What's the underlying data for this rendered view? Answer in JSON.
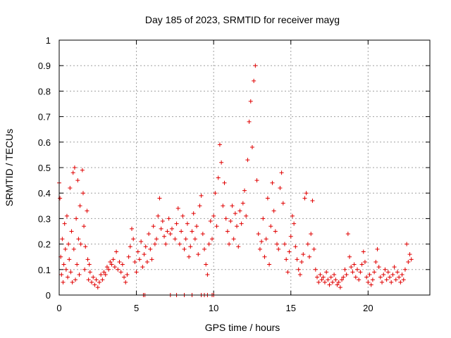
{
  "chart_data": {
    "type": "scatter",
    "title": "Day 185 of 2023, SRMTID for receiver mayg",
    "xlabel": "GPS time / hours",
    "ylabel": "SRMTID / TECUs",
    "xlim": [
      0,
      24
    ],
    "ylim": [
      0,
      1
    ],
    "x_ticks": [
      0,
      5,
      10,
      15,
      20
    ],
    "x_tick_labels": [
      "0",
      "5",
      "10",
      "15",
      "20"
    ],
    "y_ticks": [
      0,
      0.1,
      0.2,
      0.3,
      0.4,
      0.5,
      0.6,
      0.7,
      0.8,
      0.9,
      1
    ],
    "y_tick_labels": [
      "0",
      "0.1",
      "0.2",
      "0.3",
      "0.4",
      "0.5",
      "0.6",
      "0.7",
      "0.8",
      "0.9",
      "1"
    ],
    "grid": true,
    "marker": "+",
    "color": "#e00000",
    "series": [
      {
        "name": "SRMTID",
        "points": [
          [
            0.0,
            0.44
          ],
          [
            0.05,
            0.38
          ],
          [
            0.1,
            0.15
          ],
          [
            0.15,
            0.08
          ],
          [
            0.2,
            0.22
          ],
          [
            0.25,
            0.05
          ],
          [
            0.3,
            0.12
          ],
          [
            0.35,
            0.28
          ],
          [
            0.4,
            0.18
          ],
          [
            0.45,
            0.1
          ],
          [
            0.5,
            0.31
          ],
          [
            0.55,
            0.07
          ],
          [
            0.6,
            0.2
          ],
          [
            0.65,
            0.14
          ],
          [
            0.7,
            0.42
          ],
          [
            0.75,
            0.09
          ],
          [
            0.8,
            0.25
          ],
          [
            0.85,
            0.05
          ],
          [
            0.9,
            0.48
          ],
          [
            0.95,
            0.18
          ],
          [
            1.0,
            0.5
          ],
          [
            1.05,
            0.06
          ],
          [
            1.1,
            0.3
          ],
          [
            1.15,
            0.12
          ],
          [
            1.2,
            0.45
          ],
          [
            1.25,
            0.22
          ],
          [
            1.3,
            0.08
          ],
          [
            1.35,
            0.35
          ],
          [
            1.4,
            0.2
          ],
          [
            1.5,
            0.49
          ],
          [
            1.55,
            0.4
          ],
          [
            1.6,
            0.27
          ],
          [
            1.65,
            0.1
          ],
          [
            1.7,
            0.19
          ],
          [
            1.8,
            0.33
          ],
          [
            1.85,
            0.14
          ],
          [
            1.9,
            0.06
          ],
          [
            1.95,
            0.12
          ],
          [
            2.0,
            0.09
          ],
          [
            2.1,
            0.05
          ],
          [
            2.2,
            0.07
          ],
          [
            2.3,
            0.04
          ],
          [
            2.4,
            0.06
          ],
          [
            2.5,
            0.03
          ],
          [
            2.6,
            0.05
          ],
          [
            2.7,
            0.08
          ],
          [
            2.8,
            0.06
          ],
          [
            2.9,
            0.09
          ],
          [
            3.0,
            0.08
          ],
          [
            3.1,
            0.11
          ],
          [
            3.2,
            0.1
          ],
          [
            3.3,
            0.13
          ],
          [
            3.4,
            0.12
          ],
          [
            3.5,
            0.14
          ],
          [
            3.6,
            0.11
          ],
          [
            3.7,
            0.17
          ],
          [
            3.8,
            0.1
          ],
          [
            3.9,
            0.13
          ],
          [
            4.0,
            0.09
          ],
          [
            4.1,
            0.12
          ],
          [
            4.2,
            0.07
          ],
          [
            4.3,
            0.05
          ],
          [
            4.4,
            0.08
          ],
          [
            4.5,
            0.15
          ],
          [
            4.6,
            0.19
          ],
          [
            4.7,
            0.26
          ],
          [
            4.8,
            0.22
          ],
          [
            4.9,
            0.13
          ],
          [
            5.0,
            0.09
          ],
          [
            5.1,
            0.17
          ],
          [
            5.2,
            0.14
          ],
          [
            5.3,
            0.21
          ],
          [
            5.4,
            0.11
          ],
          [
            5.5,
            0.16
          ],
          [
            5.6,
            0.19
          ],
          [
            5.7,
            0.13
          ],
          [
            5.8,
            0.24
          ],
          [
            5.9,
            0.18
          ],
          [
            6.0,
            0.14
          ],
          [
            6.1,
            0.27
          ],
          [
            6.2,
            0.2
          ],
          [
            6.3,
            0.22
          ],
          [
            6.4,
            0.31
          ],
          [
            6.5,
            0.38
          ],
          [
            6.6,
            0.26
          ],
          [
            6.7,
            0.29
          ],
          [
            6.8,
            0.23
          ],
          [
            6.9,
            0.2
          ],
          [
            7.0,
            0.25
          ],
          [
            7.1,
            0.3
          ],
          [
            7.2,
            0.24
          ],
          [
            7.3,
            0.26
          ],
          [
            7.5,
            0.22
          ],
          [
            7.6,
            0.28
          ],
          [
            7.7,
            0.34
          ],
          [
            7.8,
            0.2
          ],
          [
            7.9,
            0.25
          ],
          [
            8.0,
            0.31
          ],
          [
            8.1,
            0.18
          ],
          [
            8.2,
            0.22
          ],
          [
            8.3,
            0.28
          ],
          [
            8.4,
            0.15
          ],
          [
            8.5,
            0.19
          ],
          [
            8.6,
            0.25
          ],
          [
            8.7,
            0.32
          ],
          [
            8.8,
            0.22
          ],
          [
            8.9,
            0.27
          ],
          [
            9.0,
            0.16
          ],
          [
            9.1,
            0.35
          ],
          [
            9.2,
            0.39
          ],
          [
            9.3,
            0.24
          ],
          [
            9.4,
            0.18
          ],
          [
            9.5,
            0.12
          ],
          [
            9.6,
            0.08
          ],
          [
            9.7,
            0.2
          ],
          [
            9.8,
            0.29
          ],
          [
            9.9,
            0.22
          ],
          [
            10.0,
            0.31
          ],
          [
            10.1,
            0.4
          ],
          [
            10.2,
            0.27
          ],
          [
            10.3,
            0.46
          ],
          [
            10.4,
            0.59
          ],
          [
            10.5,
            0.52
          ],
          [
            10.6,
            0.35
          ],
          [
            10.7,
            0.44
          ],
          [
            10.8,
            0.3
          ],
          [
            10.9,
            0.25
          ],
          [
            11.0,
            0.2
          ],
          [
            11.1,
            0.29
          ],
          [
            11.2,
            0.35
          ],
          [
            11.3,
            0.22
          ],
          [
            11.4,
            0.32
          ],
          [
            11.5,
            0.27
          ],
          [
            11.6,
            0.19
          ],
          [
            11.7,
            0.33
          ],
          [
            11.8,
            0.28
          ],
          [
            11.9,
            0.36
          ],
          [
            12.0,
            0.41
          ],
          [
            12.1,
            0.31
          ],
          [
            12.2,
            0.53
          ],
          [
            12.3,
            0.68
          ],
          [
            12.4,
            0.76
          ],
          [
            12.5,
            0.58
          ],
          [
            12.6,
            0.84
          ],
          [
            12.7,
            0.9
          ],
          [
            12.8,
            0.45
          ],
          [
            12.9,
            0.24
          ],
          [
            13.0,
            0.18
          ],
          [
            13.1,
            0.21
          ],
          [
            13.2,
            0.3
          ],
          [
            13.3,
            0.15
          ],
          [
            13.4,
            0.22
          ],
          [
            13.5,
            0.38
          ],
          [
            13.6,
            0.12
          ],
          [
            13.7,
            0.27
          ],
          [
            13.8,
            0.44
          ],
          [
            13.9,
            0.33
          ],
          [
            14.0,
            0.25
          ],
          [
            14.1,
            0.2
          ],
          [
            14.2,
            0.18
          ],
          [
            14.3,
            0.42
          ],
          [
            14.4,
            0.48
          ],
          [
            14.5,
            0.36
          ],
          [
            14.6,
            0.2
          ],
          [
            14.7,
            0.14
          ],
          [
            14.8,
            0.09
          ],
          [
            14.9,
            0.17
          ],
          [
            15.0,
            0.23
          ],
          [
            15.1,
            0.31
          ],
          [
            15.2,
            0.28
          ],
          [
            15.3,
            0.19
          ],
          [
            15.4,
            0.14
          ],
          [
            15.5,
            0.1
          ],
          [
            15.6,
            0.08
          ],
          [
            15.7,
            0.13
          ],
          [
            15.8,
            0.16
          ],
          [
            15.9,
            0.38
          ],
          [
            16.0,
            0.4
          ],
          [
            16.1,
            0.2
          ],
          [
            16.2,
            0.15
          ],
          [
            16.3,
            0.24
          ],
          [
            16.4,
            0.37
          ],
          [
            16.5,
            0.18
          ],
          [
            16.6,
            0.1
          ],
          [
            16.7,
            0.07
          ],
          [
            16.8,
            0.05
          ],
          [
            16.9,
            0.08
          ],
          [
            17.0,
            0.06
          ],
          [
            17.1,
            0.07
          ],
          [
            17.2,
            0.05
          ],
          [
            17.3,
            0.09
          ],
          [
            17.4,
            0.06
          ],
          [
            17.5,
            0.04
          ],
          [
            17.6,
            0.07
          ],
          [
            17.7,
            0.05
          ],
          [
            17.8,
            0.08
          ],
          [
            17.9,
            0.06
          ],
          [
            18.0,
            0.04
          ],
          [
            18.1,
            0.05
          ],
          [
            18.2,
            0.03
          ],
          [
            18.3,
            0.06
          ],
          [
            18.4,
            0.07
          ],
          [
            18.5,
            0.1
          ],
          [
            18.6,
            0.08
          ],
          [
            18.7,
            0.24
          ],
          [
            18.8,
            0.15
          ],
          [
            18.9,
            0.11
          ],
          [
            19.0,
            0.09
          ],
          [
            19.1,
            0.12
          ],
          [
            19.2,
            0.07
          ],
          [
            19.3,
            0.1
          ],
          [
            19.4,
            0.06
          ],
          [
            19.5,
            0.09
          ],
          [
            19.6,
            0.12
          ],
          [
            19.7,
            0.17
          ],
          [
            19.8,
            0.13
          ],
          [
            19.9,
            0.07
          ],
          [
            20.0,
            0.05
          ],
          [
            20.1,
            0.08
          ],
          [
            20.2,
            0.04
          ],
          [
            20.3,
            0.06
          ],
          [
            20.4,
            0.09
          ],
          [
            20.5,
            0.13
          ],
          [
            20.6,
            0.18
          ],
          [
            20.7,
            0.11
          ],
          [
            20.8,
            0.07
          ],
          [
            20.9,
            0.05
          ],
          [
            21.0,
            0.08
          ],
          [
            21.1,
            0.1
          ],
          [
            21.2,
            0.06
          ],
          [
            21.3,
            0.09
          ],
          [
            21.4,
            0.07
          ],
          [
            21.5,
            0.05
          ],
          [
            21.6,
            0.08
          ],
          [
            21.7,
            0.11
          ],
          [
            21.8,
            0.06
          ],
          [
            21.9,
            0.09
          ],
          [
            22.0,
            0.07
          ],
          [
            22.1,
            0.05
          ],
          [
            22.2,
            0.08
          ],
          [
            22.3,
            0.06
          ],
          [
            22.4,
            0.1
          ],
          [
            22.5,
            0.2
          ],
          [
            22.6,
            0.13
          ],
          [
            22.7,
            0.16
          ],
          [
            22.8,
            0.14
          ],
          [
            5.45,
            0.0
          ],
          [
            5.55,
            0.0
          ],
          [
            7.2,
            0.0
          ],
          [
            7.6,
            0.0
          ],
          [
            8.1,
            0.0
          ],
          [
            8.6,
            0.0
          ],
          [
            9.2,
            0.0
          ],
          [
            9.4,
            0.0
          ],
          [
            9.6,
            0.0
          ],
          [
            9.9,
            0.0
          ],
          [
            10.0,
            0.0
          ]
        ]
      }
    ]
  }
}
